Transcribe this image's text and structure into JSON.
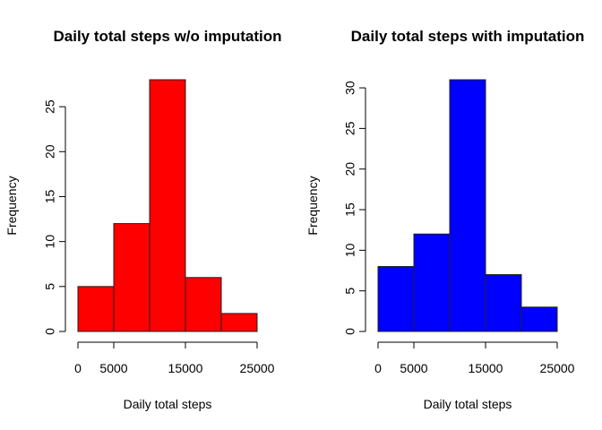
{
  "chart_data": [
    {
      "type": "bar",
      "title": "Daily total steps w/o imputation",
      "xlabel": "Daily total steps",
      "ylabel": "Frequency",
      "bins": [
        [
          0,
          5000
        ],
        [
          5000,
          10000
        ],
        [
          10000,
          15000
        ],
        [
          15000,
          20000
        ],
        [
          20000,
          25000
        ]
      ],
      "values": [
        5,
        12,
        28,
        6,
        2
      ],
      "xlim": [
        0,
        25000
      ],
      "ylim": [
        0,
        28
      ],
      "x_ticks": [
        0,
        5000,
        15000,
        25000
      ],
      "x_tick_labels": [
        "0",
        "5000",
        "15000",
        "25000"
      ],
      "y_ticks": [
        0,
        5,
        10,
        15,
        20,
        25
      ],
      "y_tick_labels": [
        "0",
        "5",
        "10",
        "15",
        "20",
        "25"
      ],
      "color": "#ff0000"
    },
    {
      "type": "bar",
      "title": "Daily total steps with imputation",
      "xlabel": "Daily total steps",
      "ylabel": "Frequency",
      "bins": [
        [
          0,
          5000
        ],
        [
          5000,
          10000
        ],
        [
          10000,
          15000
        ],
        [
          15000,
          20000
        ],
        [
          20000,
          25000
        ]
      ],
      "values": [
        8,
        12,
        31,
        7,
        3
      ],
      "xlim": [
        0,
        25000
      ],
      "ylim": [
        0,
        31
      ],
      "x_ticks": [
        0,
        5000,
        15000,
        25000
      ],
      "x_tick_labels": [
        "0",
        "5000",
        "15000",
        "25000"
      ],
      "y_ticks": [
        0,
        5,
        10,
        15,
        20,
        25,
        30
      ],
      "y_tick_labels": [
        "0",
        "5",
        "10",
        "15",
        "20",
        "25",
        "30"
      ],
      "color": "#0000ff"
    }
  ]
}
